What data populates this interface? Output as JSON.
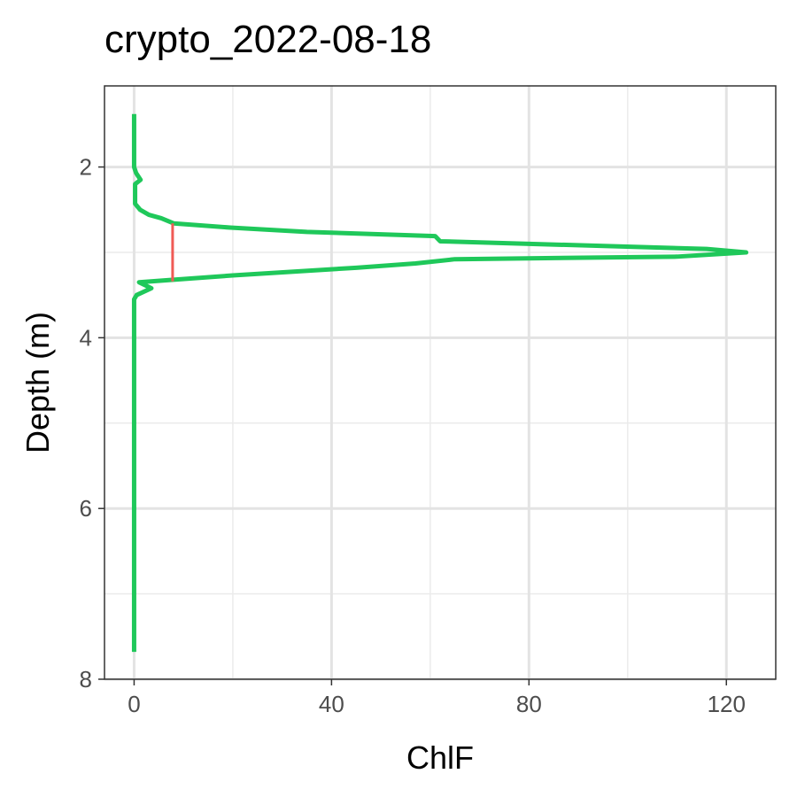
{
  "chart_data": {
    "type": "line",
    "title": "crypto_2022-08-18",
    "xlabel": "ChlF",
    "ylabel": "Depth (m)",
    "xlim": [
      -6,
      130
    ],
    "ylim": [
      8,
      1.05
    ],
    "y_reversed": true,
    "x_ticks": [
      0,
      40,
      80,
      120
    ],
    "x_tick_labels": [
      "0",
      "40",
      "80",
      "120"
    ],
    "y_ticks": [
      2,
      4,
      6,
      8
    ],
    "y_tick_labels": [
      "2",
      "4",
      "6",
      "8"
    ],
    "x_minor_ticks": [
      20,
      60,
      100
    ],
    "y_minor_ticks": [
      3,
      5,
      7
    ],
    "grid": true,
    "legend": "none",
    "series": [
      {
        "color": "#1fc85a",
        "points": [
          [
            0,
            1.38
          ],
          [
            0,
            2.0
          ],
          [
            0.4,
            2.07
          ],
          [
            1.3,
            2.15
          ],
          [
            0.2,
            2.2
          ],
          [
            0.2,
            2.43
          ],
          [
            1.2,
            2.5
          ],
          [
            3.0,
            2.56
          ],
          [
            5.5,
            2.6
          ],
          [
            8.0,
            2.66
          ],
          [
            19.5,
            2.71
          ],
          [
            35.0,
            2.76
          ],
          [
            61.0,
            2.81
          ],
          [
            62.0,
            2.87
          ],
          [
            116.0,
            2.96
          ],
          [
            124.0,
            3.0
          ],
          [
            110.0,
            3.05
          ],
          [
            65.0,
            3.08
          ],
          [
            57.0,
            3.13
          ],
          [
            45.0,
            3.18
          ],
          [
            20.0,
            3.27
          ],
          [
            8.0,
            3.32
          ],
          [
            1.0,
            3.35
          ],
          [
            3.5,
            3.42
          ],
          [
            0.5,
            3.5
          ],
          [
            0,
            3.55
          ],
          [
            0,
            7.68
          ]
        ]
      },
      {
        "color": "#f05a55",
        "points": [
          [
            7.8,
            2.66
          ],
          [
            7.8,
            3.34
          ]
        ]
      }
    ]
  }
}
